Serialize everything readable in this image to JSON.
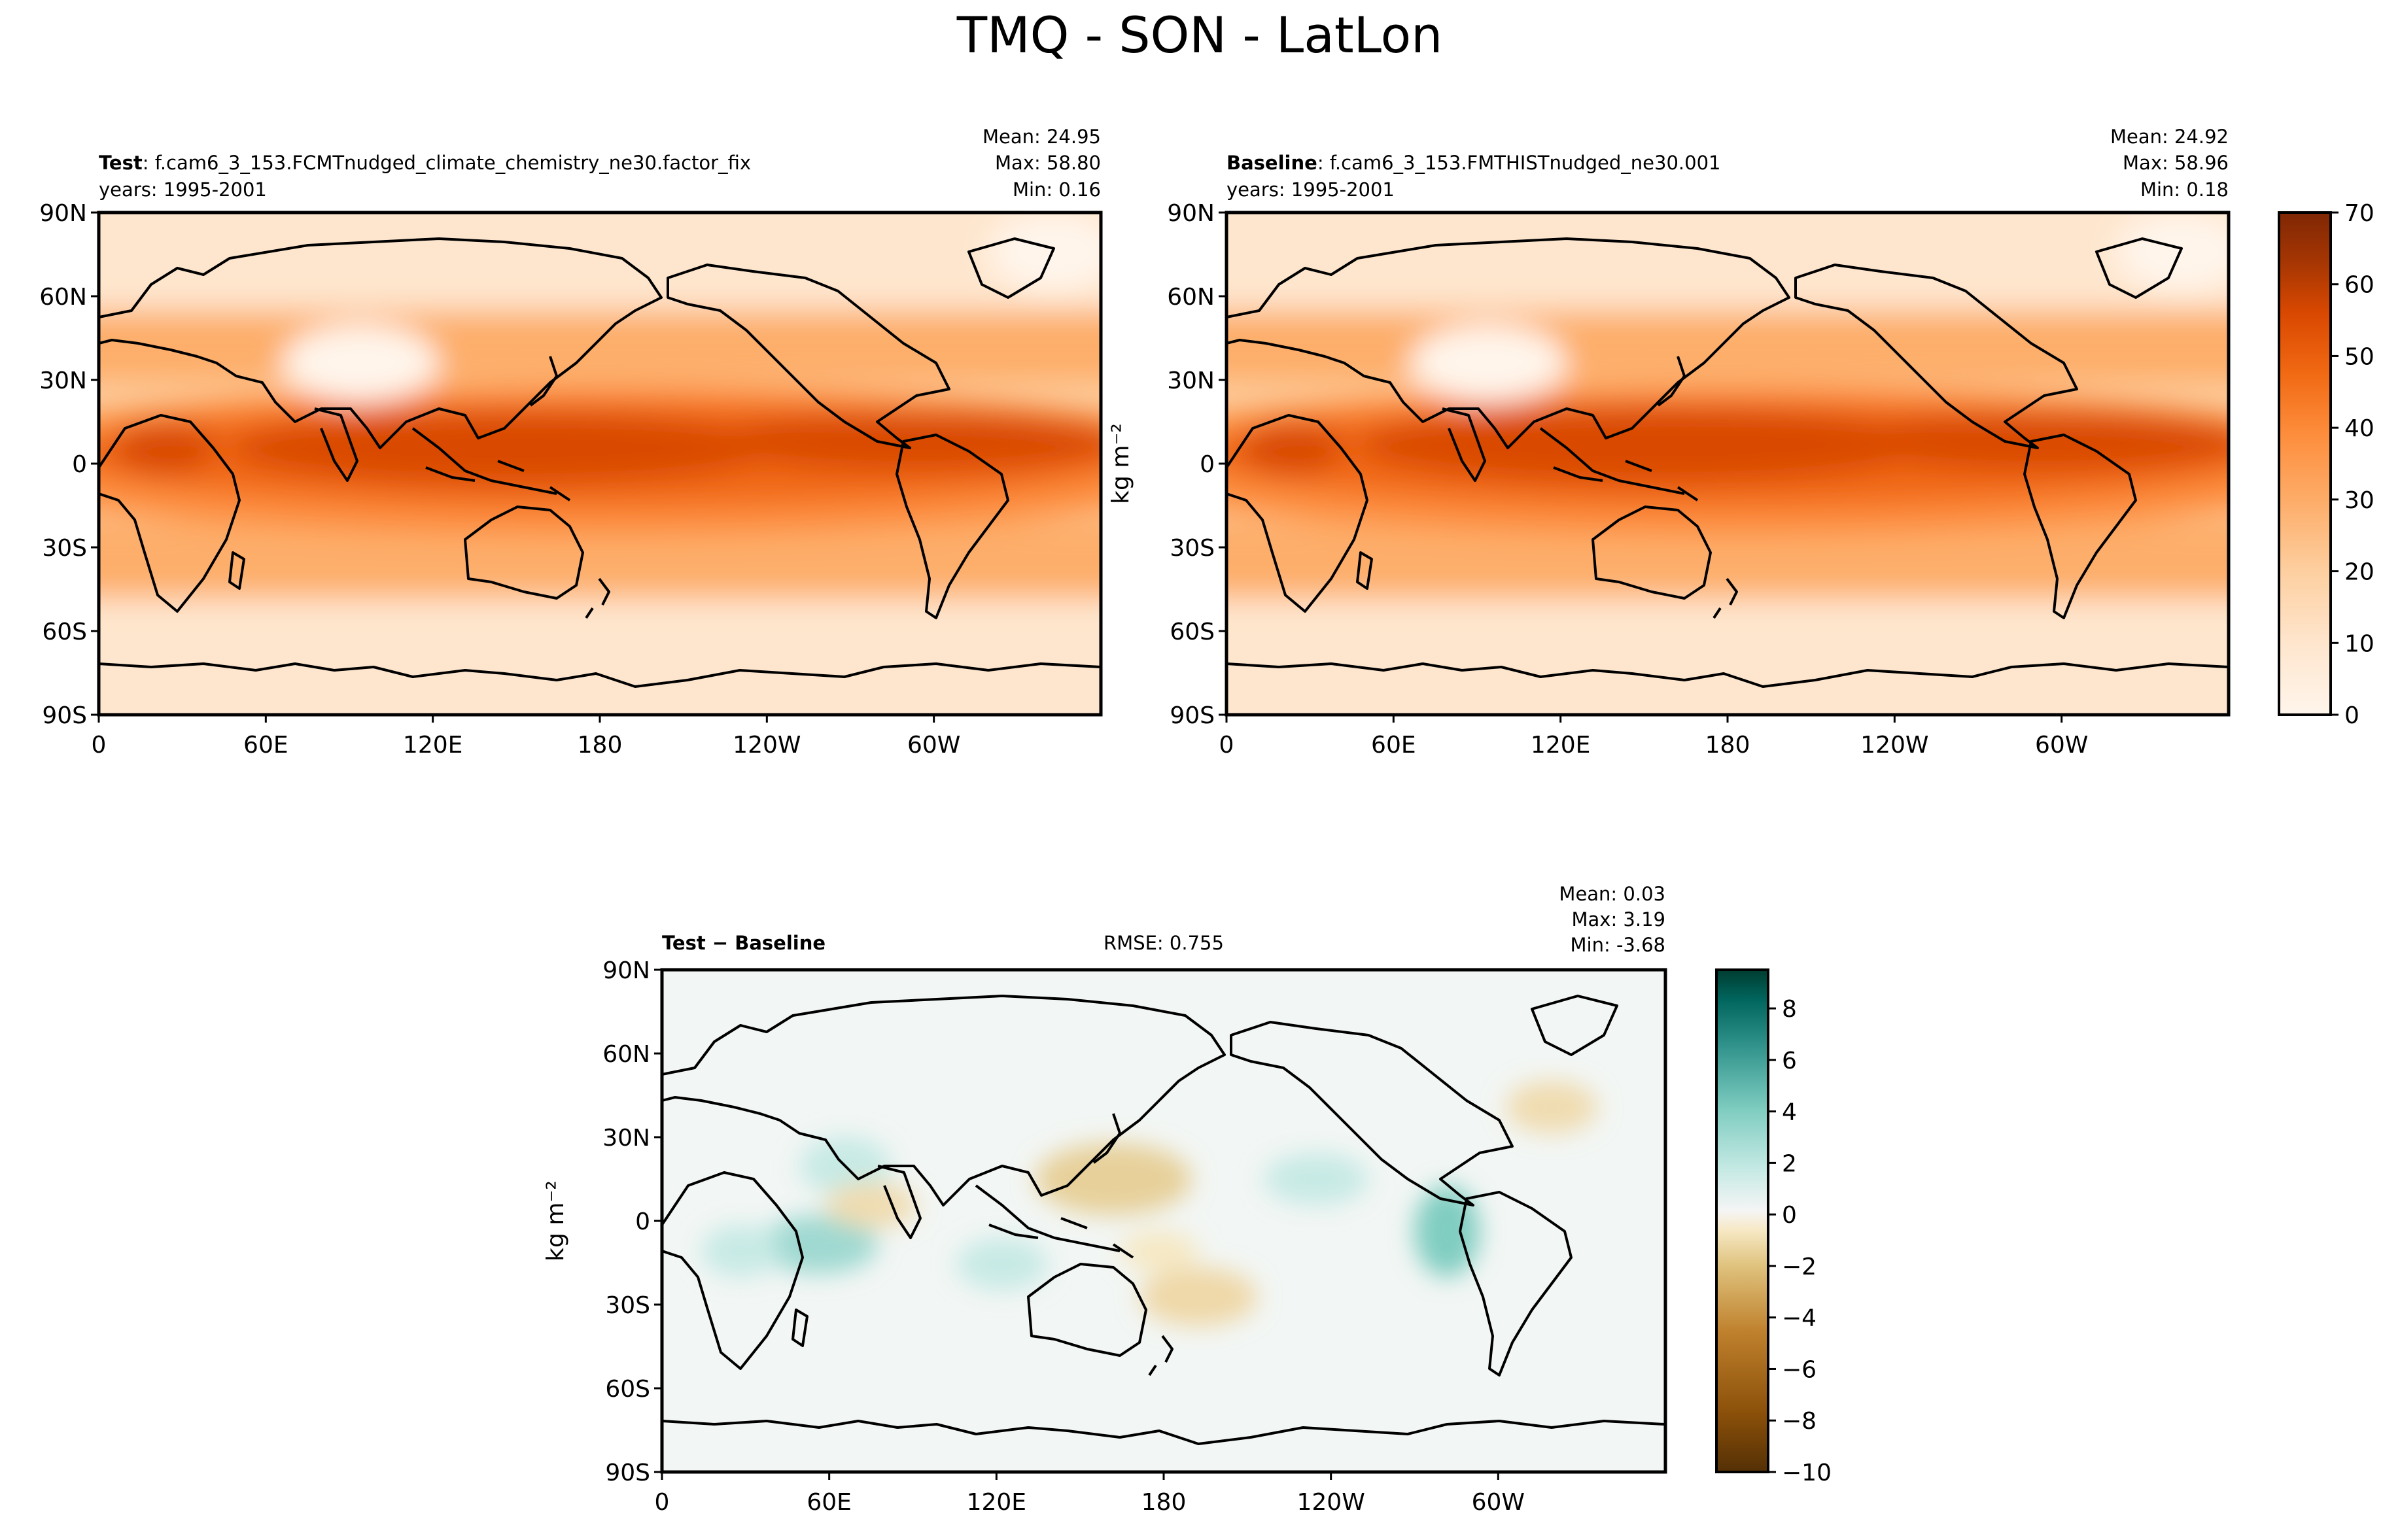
{
  "figure": {
    "suptitle": "TMQ - SON - LatLon"
  },
  "theme": {
    "coast_color": "#000000",
    "field_palette": [
      "#fff5eb",
      "#fee6ce",
      "#fdd0a2",
      "#fdae6b",
      "#fd8d3c",
      "#f16913",
      "#d94801",
      "#a63603",
      "#7f2704"
    ],
    "diff_palette_neg": [
      "#543005",
      "#8c510a",
      "#bf812d",
      "#dfc27d",
      "#f6e8c3"
    ],
    "diff_palette_pos": [
      "#f5f5f5",
      "#c7eae5",
      "#80cdc1",
      "#35978f",
      "#01665e",
      "#003c30"
    ]
  },
  "chart_data": [
    {
      "type": "heatmap",
      "panel": "test",
      "title_bold": "Test",
      "title_rest": ": f.cam6_3_153.FCMTnudged_climate_chemistry_ne30.factor_fix",
      "years": "years: 1995-2001",
      "stats": [
        "Mean: 24.95",
        "Max: 58.80",
        "Min:  0.16"
      ],
      "ylabel": "",
      "xticks": [
        "0",
        "60E",
        "120E",
        "180",
        "120W",
        "60W"
      ],
      "yticks": [
        "90N",
        "60N",
        "30N",
        "0",
        "30S",
        "60S",
        "90S"
      ],
      "xlim": [
        0,
        360
      ],
      "ylim": [
        -90,
        90
      ],
      "zlim": [
        0,
        70
      ],
      "field": "TMQ"
    },
    {
      "type": "heatmap",
      "panel": "baseline",
      "title_bold": "Baseline",
      "title_rest": ": f.cam6_3_153.FMTHISTnudged_ne30.001",
      "years": "years: 1995-2001",
      "stats": [
        "Mean: 24.92",
        "Max: 58.96",
        "Min:  0.18"
      ],
      "ylabel": "kg m⁻²",
      "xticks": [
        "0",
        "60E",
        "120E",
        "180",
        "120W",
        "60W"
      ],
      "yticks": [
        "90N",
        "60N",
        "30N",
        "0",
        "30S",
        "60S",
        "90S"
      ],
      "xlim": [
        0,
        360
      ],
      "ylim": [
        -90,
        90
      ],
      "zlim": [
        0,
        70
      ],
      "colorbar_ticks": [
        "0",
        "10",
        "20",
        "30",
        "40",
        "50",
        "60",
        "70"
      ],
      "field": "TMQ"
    },
    {
      "type": "heatmap",
      "panel": "difference",
      "title_bold": "Test − Baseline",
      "rmse": "RMSE: 0.755",
      "stats": [
        "Mean:  0.03",
        "Max:  3.19",
        "Min: -3.68"
      ],
      "ylabel": "kg m⁻²",
      "xticks": [
        "0",
        "60E",
        "120E",
        "180",
        "120W",
        "60W"
      ],
      "yticks": [
        "90N",
        "60N",
        "30N",
        "0",
        "30S",
        "60S",
        "90S"
      ],
      "xlim": [
        0,
        360
      ],
      "ylim": [
        -90,
        90
      ],
      "zlim": [
        -10,
        9.5
      ],
      "colorbar_ticks": [
        "8",
        "6",
        "4",
        "2",
        "0",
        "−2",
        "−4",
        "−6",
        "−8",
        "−10"
      ],
      "field": "TMQ difference"
    }
  ]
}
